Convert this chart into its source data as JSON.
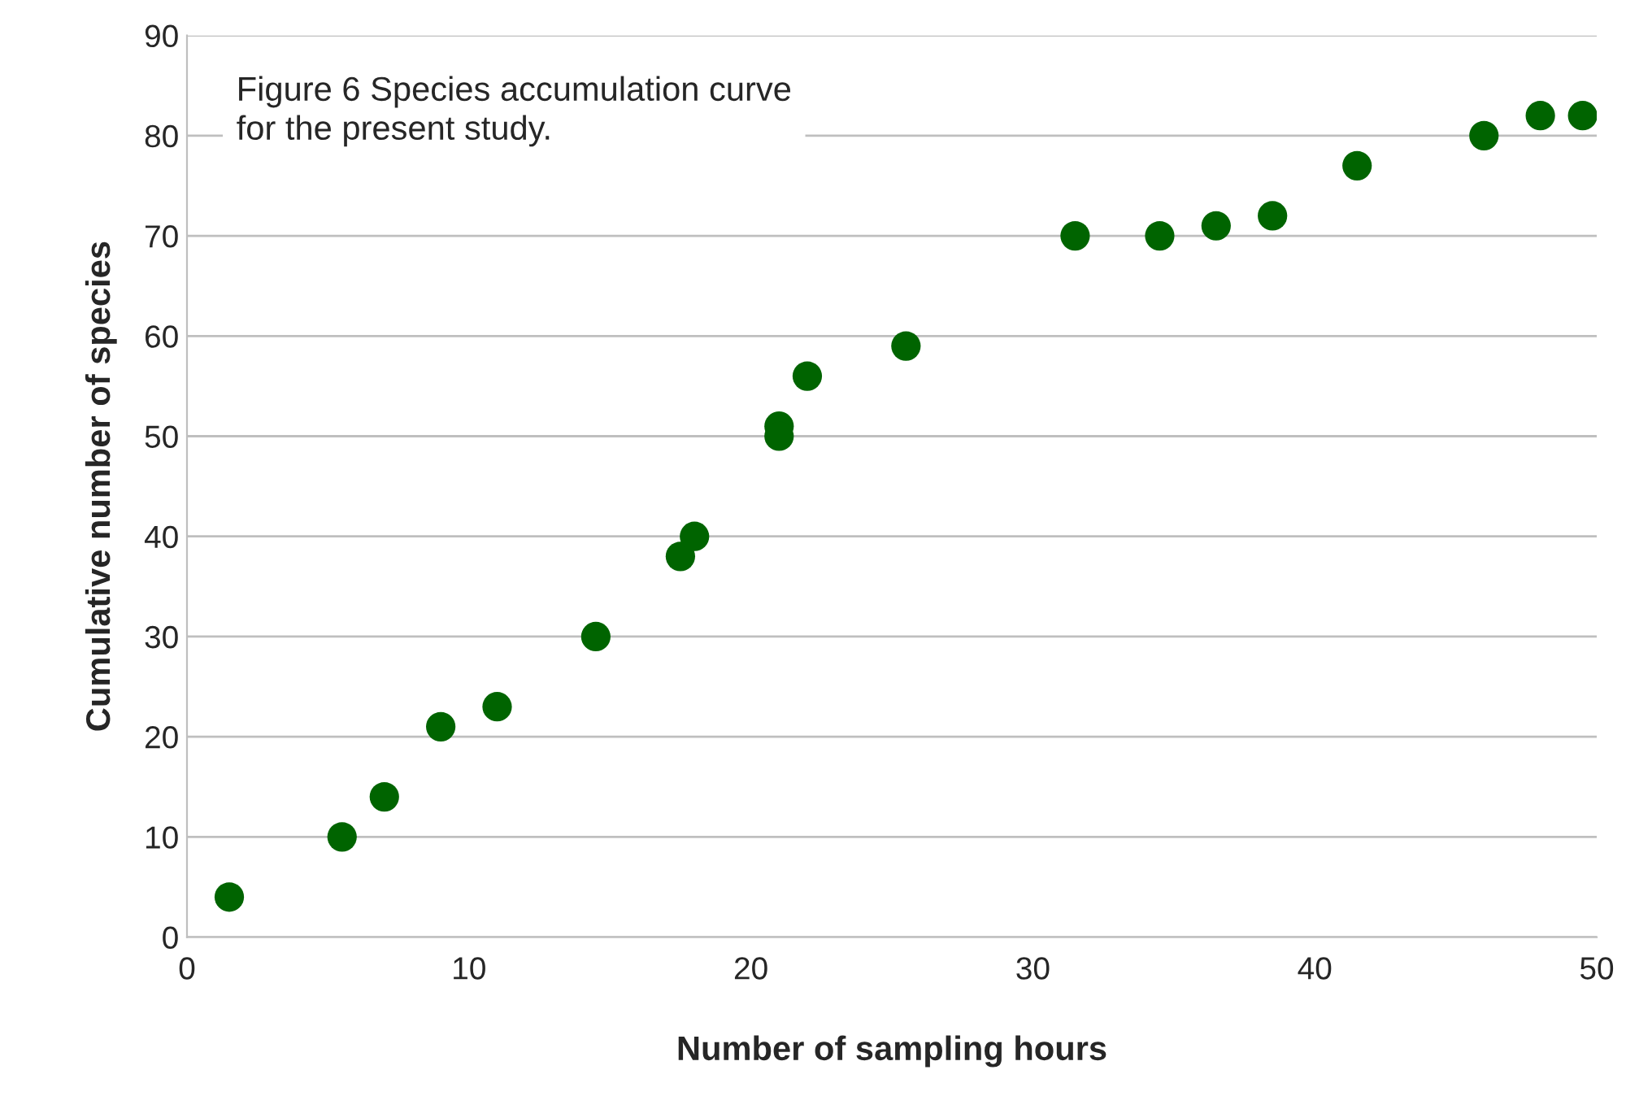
{
  "chart_data": {
    "type": "scatter",
    "title": "Figure 6 Species accumulation curve\nfor the present study.",
    "xlabel": "Number of sampling hours",
    "ylabel": "Cumulative number of species",
    "x": [
      1.5,
      5.5,
      7,
      9,
      11,
      14.5,
      17.5,
      18,
      21,
      21,
      22,
      25.5,
      31.5,
      34.5,
      36.5,
      38.5,
      41.5,
      46,
      48,
      49.5
    ],
    "series": [
      {
        "color": "#006400",
        "values": [
          4,
          10,
          14,
          21,
          23,
          30,
          38,
          40,
          51,
          50,
          56,
          59,
          70,
          70,
          71,
          72,
          77,
          80,
          82,
          82
        ]
      }
    ],
    "xlim": [
      0,
      50
    ],
    "xticks": [
      0,
      10,
      20,
      30,
      40,
      50
    ],
    "ylim": [
      0,
      90
    ],
    "yticks": [
      0,
      10,
      20,
      30,
      40,
      50,
      60,
      70,
      80,
      90
    ],
    "grid": "y",
    "marker": "circle"
  }
}
